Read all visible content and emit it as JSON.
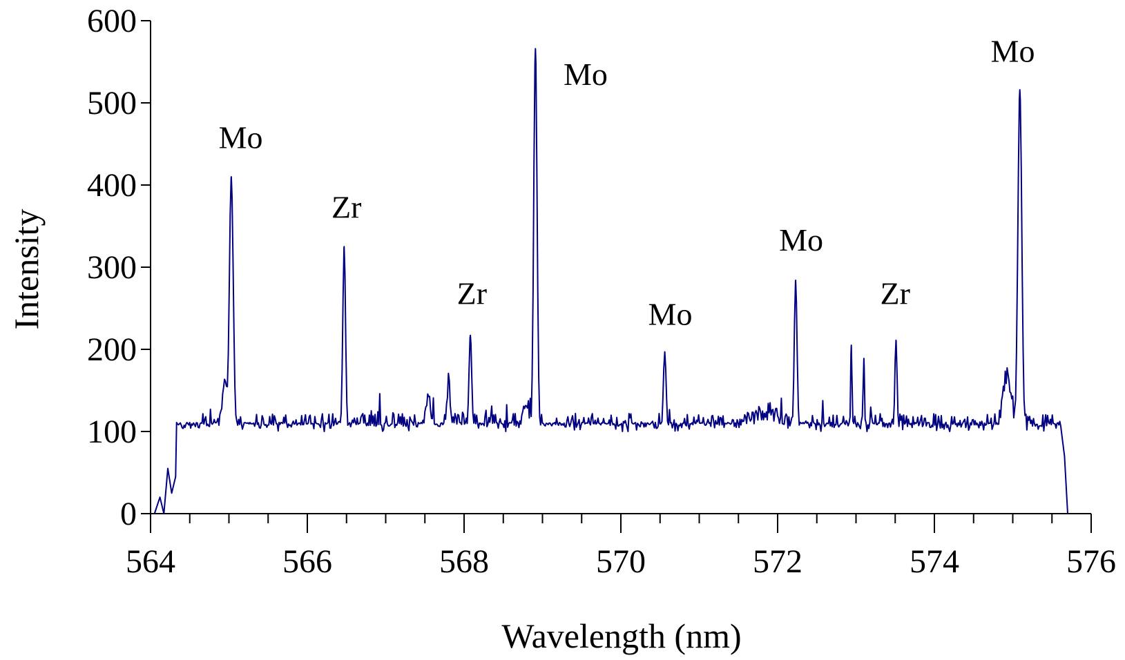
{
  "chart_data": {
    "type": "line",
    "title": "",
    "xlabel": "Wavelength (nm)",
    "ylabel": "Intensity",
    "xlim": [
      564,
      576
    ],
    "ylim": [
      0,
      600
    ],
    "x_ticks": [
      564,
      566,
      568,
      570,
      572,
      574,
      576
    ],
    "x_tick_labels": [
      "564",
      "566",
      "568",
      "570",
      "572",
      "574",
      "576"
    ],
    "x_minor_step": 0.5,
    "y_ticks": [
      0,
      100,
      200,
      300,
      400,
      500,
      600
    ],
    "y_tick_labels": [
      "0",
      "100",
      "200",
      "300",
      "400",
      "500",
      "600"
    ],
    "grid": false,
    "legend": "none",
    "line_color": "#000080",
    "series": [
      {
        "x_range": [
          564.05,
          575.7
        ],
        "baseline": 100,
        "noise_amplitude": 22,
        "edge_start": [
          [
            564.05,
            0
          ],
          [
            564.12,
            20
          ],
          [
            564.17,
            0
          ],
          [
            564.22,
            55
          ],
          [
            564.27,
            25
          ],
          [
            564.32,
            45
          ]
        ],
        "edge_end": [
          [
            575.62,
            100
          ],
          [
            575.66,
            70
          ],
          [
            575.7,
            0
          ]
        ],
        "peaks": [
          {
            "x": 565.03,
            "y": 410,
            "width": 0.035
          },
          {
            "x": 566.47,
            "y": 325,
            "width": 0.025
          },
          {
            "x": 568.08,
            "y": 217,
            "width": 0.025
          },
          {
            "x": 568.91,
            "y": 566,
            "width": 0.03
          },
          {
            "x": 570.56,
            "y": 197,
            "width": 0.025
          },
          {
            "x": 572.23,
            "y": 284,
            "width": 0.025
          },
          {
            "x": 572.94,
            "y": 205,
            "width": 0.012
          },
          {
            "x": 573.1,
            "y": 189,
            "width": 0.012
          },
          {
            "x": 573.51,
            "y": 211,
            "width": 0.02
          },
          {
            "x": 575.09,
            "y": 516,
            "width": 0.035
          }
        ],
        "shoulders": [
          {
            "x": 564.95,
            "y": 165,
            "width": 0.05
          },
          {
            "x": 567.54,
            "y": 150,
            "width": 0.04
          },
          {
            "x": 567.8,
            "y": 160,
            "width": 0.03
          },
          {
            "x": 568.8,
            "y": 140,
            "width": 0.05
          },
          {
            "x": 571.85,
            "y": 125,
            "width": 0.3
          },
          {
            "x": 574.93,
            "y": 170,
            "width": 0.08
          }
        ]
      }
    ],
    "annotations": [
      {
        "text": "Mo",
        "x": 565.15,
        "y": 445
      },
      {
        "text": "Zr",
        "x": 566.5,
        "y": 360
      },
      {
        "text": "Zr",
        "x": 568.1,
        "y": 255
      },
      {
        "text": "Mo",
        "x": 569.55,
        "y": 522
      },
      {
        "text": "Mo",
        "x": 570.63,
        "y": 230
      },
      {
        "text": "Mo",
        "x": 572.3,
        "y": 320
      },
      {
        "text": "Zr",
        "x": 573.5,
        "y": 255
      },
      {
        "text": "Mo",
        "x": 575.0,
        "y": 550
      }
    ]
  }
}
